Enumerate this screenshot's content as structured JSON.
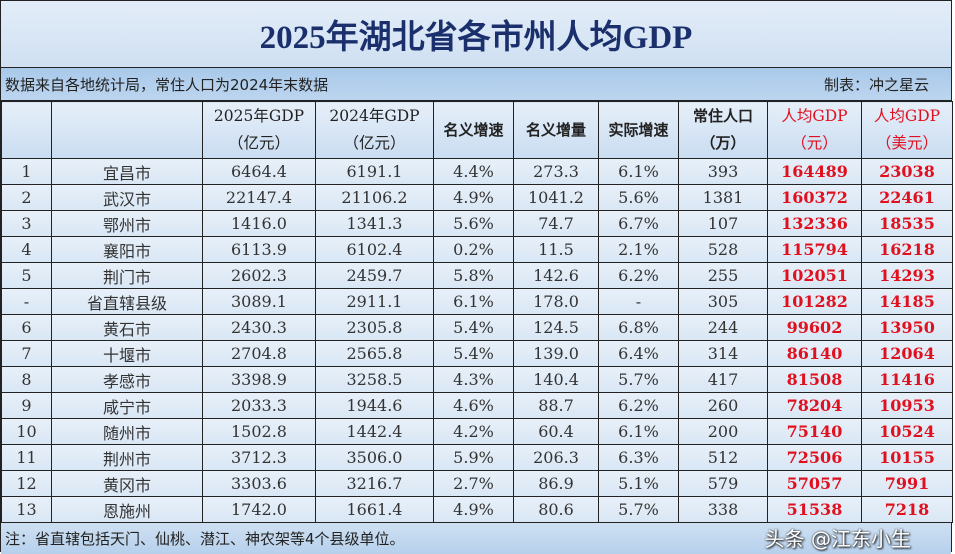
{
  "title": "2025年湖北省各市州人均GDP",
  "source_note": "数据来自各地统计局，常住人口为2024年末数据",
  "author": "制表：冲之星云",
  "headers": [
    {
      "l1": "",
      "l2": ""
    },
    {
      "l1": "",
      "l2": ""
    },
    {
      "l1": "2025年GDP",
      "l2": "（亿元）"
    },
    {
      "l1": "2024年GDP",
      "l2": "（亿元）"
    },
    {
      "l1": "名义增速",
      "l2": ""
    },
    {
      "l1": "名义增量",
      "l2": ""
    },
    {
      "l1": "实际增速",
      "l2": ""
    },
    {
      "l1": "常住人口",
      "l2": "（万）"
    },
    {
      "l1": "人均GDP",
      "l2": "（元）"
    },
    {
      "l1": "人均GDP",
      "l2": "（美元）"
    }
  ],
  "rows": [
    [
      "1",
      "宜昌市",
      "6464.4",
      "6191.1",
      "4.4%",
      "273.3",
      "6.1%",
      "393",
      "164489",
      "23038"
    ],
    [
      "2",
      "武汉市",
      "22147.4",
      "21106.2",
      "4.9%",
      "1041.2",
      "5.6%",
      "1381",
      "160372",
      "22461"
    ],
    [
      "3",
      "鄂州市",
      "1416.0",
      "1341.3",
      "5.6%",
      "74.7",
      "6.7%",
      "107",
      "132336",
      "18535"
    ],
    [
      "4",
      "襄阳市",
      "6113.9",
      "6102.4",
      "0.2%",
      "11.5",
      "2.1%",
      "528",
      "115794",
      "16218"
    ],
    [
      "5",
      "荆门市",
      "2602.3",
      "2459.7",
      "5.8%",
      "142.6",
      "6.2%",
      "255",
      "102051",
      "14293"
    ],
    [
      "-",
      "省直辖县级",
      "3089.1",
      "2911.1",
      "6.1%",
      "178.0",
      "-",
      "305",
      "101282",
      "14185"
    ],
    [
      "6",
      "黄石市",
      "2430.3",
      "2305.8",
      "5.4%",
      "124.5",
      "6.8%",
      "244",
      "99602",
      "13950"
    ],
    [
      "7",
      "十堰市",
      "2704.8",
      "2565.8",
      "5.4%",
      "139.0",
      "6.4%",
      "314",
      "86140",
      "12064"
    ],
    [
      "8",
      "孝感市",
      "3398.9",
      "3258.5",
      "4.3%",
      "140.4",
      "5.7%",
      "417",
      "81508",
      "11416"
    ],
    [
      "9",
      "咸宁市",
      "2033.3",
      "1944.6",
      "4.6%",
      "88.7",
      "6.2%",
      "260",
      "78204",
      "10953"
    ],
    [
      "10",
      "随州市",
      "1502.8",
      "1442.4",
      "4.2%",
      "60.4",
      "6.1%",
      "200",
      "75140",
      "10524"
    ],
    [
      "11",
      "荆州市",
      "3712.3",
      "3506.0",
      "5.9%",
      "206.3",
      "6.3%",
      "512",
      "72506",
      "10155"
    ],
    [
      "12",
      "黄冈市",
      "3303.6",
      "3216.7",
      "2.7%",
      "86.9",
      "5.1%",
      "579",
      "57057",
      "7991"
    ],
    [
      "13",
      "恩施州",
      "1742.0",
      "1661.4",
      "4.9%",
      "80.6",
      "5.7%",
      "338",
      "51538",
      "7218"
    ]
  ],
  "footnote": "注：省直辖包括天门、仙桃、潜江、神农架等4个县级单位。",
  "watermark": "头条 @江东小生",
  "colors": {
    "title": "#1a2f6b",
    "highlight": "#e0101e",
    "background": "#dfeaf6"
  }
}
